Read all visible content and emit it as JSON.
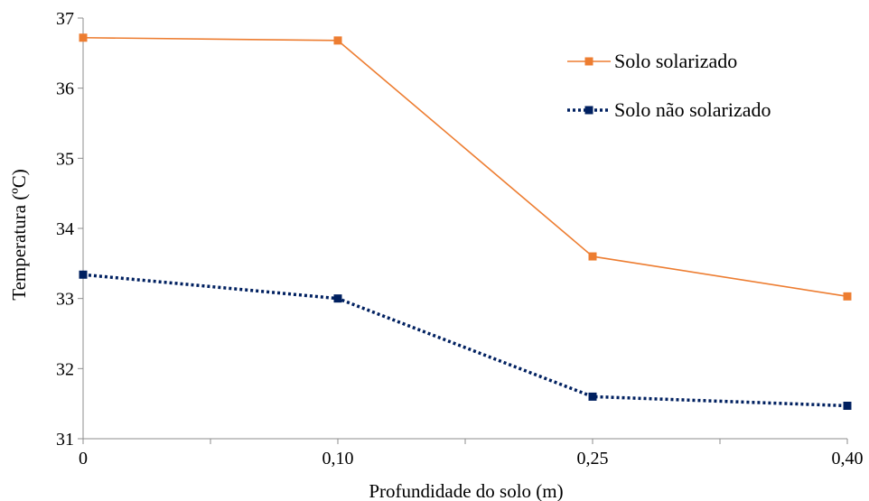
{
  "chart_data": {
    "type": "line",
    "title": "",
    "xlabel": "Profundidade do solo (m)",
    "ylabel": "Temperatura (ºC)",
    "categories": [
      "0",
      "0,10",
      "0,25",
      "0,40"
    ],
    "ylim": [
      31,
      37
    ],
    "yticks": [
      31,
      32,
      33,
      34,
      35,
      36,
      37
    ],
    "grid": false,
    "legend_position": "top-right",
    "series": [
      {
        "name": "Solo solarizado",
        "values": [
          36.72,
          36.68,
          33.6,
          33.03
        ],
        "color": "#ED7D31",
        "style": "solid"
      },
      {
        "name": "Solo não solarizado",
        "values": [
          33.34,
          33.0,
          31.6,
          31.47
        ],
        "color": "#002060",
        "style": "dotted"
      }
    ]
  }
}
